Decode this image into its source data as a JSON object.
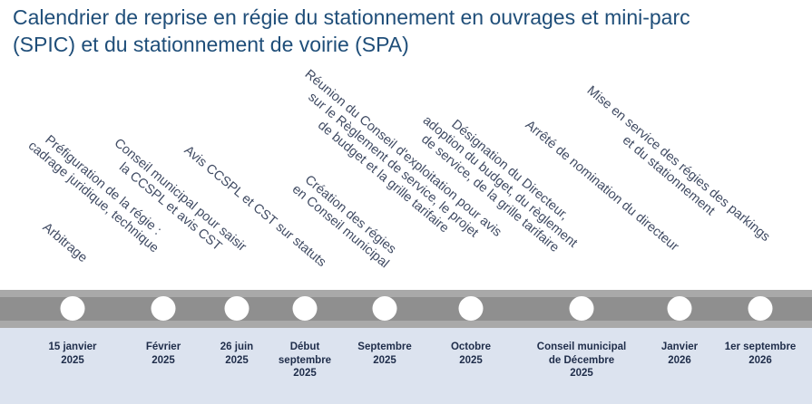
{
  "title": {
    "line1": "Calendrier de reprise en régie du stationnement en ouvrages et mini-parc",
    "line2": "(SPIC) et du stationnement de voirie (SPA)"
  },
  "milestones": [
    {
      "event": [
        "Arbitrage"
      ],
      "date": [
        "15 janvier",
        "2025"
      ]
    },
    {
      "event": [
        "Préfiguration de la régie :",
        "cadrage juridique, technique"
      ],
      "date": [
        "Février",
        "2025"
      ]
    },
    {
      "event": [
        "Conseil municipal pour saisir",
        "la CCSPL et avis CST"
      ],
      "date": [
        "26 juin",
        "2025"
      ]
    },
    {
      "event": [
        "Avis CCSPL et CST sur statuts"
      ],
      "date": [
        "Début",
        "septembre",
        "2025"
      ]
    },
    {
      "event": [
        "Création des régies",
        "en Conseil municipal"
      ],
      "date": [
        "Septembre",
        "2025"
      ]
    },
    {
      "event": [
        "Réunion du Conseil d'exploitation pour avis",
        "sur le Règlement de service, le projet",
        "de budget et la grille tarifaire"
      ],
      "date": [
        "Octobre",
        "2025"
      ]
    },
    {
      "event": [
        "Désignation du Directeur,",
        "adoption du budget, du règlement",
        "de service, de la grille tarifaire"
      ],
      "date": [
        "Conseil municipal",
        "de Décembre",
        "2025"
      ]
    },
    {
      "event": [
        "Arrêté de nomination du directeur"
      ],
      "date": [
        "Janvier",
        "2026"
      ]
    },
    {
      "event": [
        "Mise en service des régies des parkings",
        "et du stationnement"
      ],
      "date": [
        "1er septembre",
        "2026"
      ]
    }
  ]
}
